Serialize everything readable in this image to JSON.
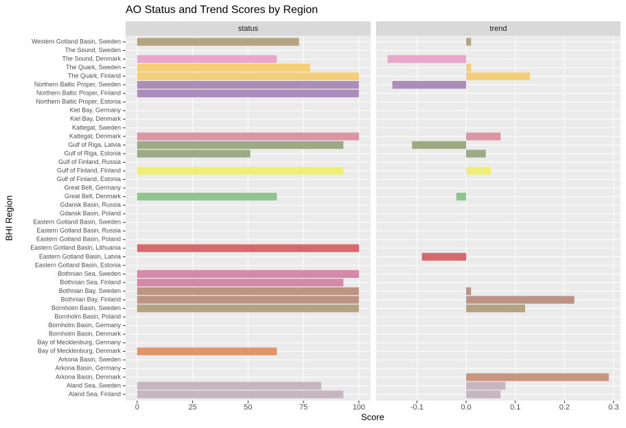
{
  "chart_data": {
    "type": "bar",
    "orientation": "horizontal",
    "title": "AO Status and Trend Scores by Region",
    "x_label": "Score",
    "y_label": "BHI Region",
    "categories": [
      "Western Gotland Basin, Sweden",
      "The Sound, Sweden",
      "The Sound, Denmark",
      "The Quark, Sweden",
      "The Quark, Finland",
      "Northern Baltic Proper, Sweden",
      "Northern Baltic Proper, Finland",
      "Northern Baltic Proper, Estonia",
      "Kiel Bay, Germany",
      "Kiel Bay, Denmark",
      "Kattegat, Sweden",
      "Kattegat, Denmark",
      "Gulf of Riga, Latvia",
      "Gulf of Riga, Estonia",
      "Gulf of Finland, Russia",
      "Gulf of Finland, Finland",
      "Gulf of Finland, Estonia",
      "Great Belt, Germany",
      "Great Belt, Denmark",
      "Gdansk Basin, Russia",
      "Gdansk Basin, Poland",
      "Eastern Gotland Basin, Sweden",
      "Eastern Gotland Basin, Russia",
      "Eastern Gotland Basin, Poland",
      "Eastern Gotland Basin, Lithuania",
      "Eastern Gotland Basin, Latvia",
      "Eastern Gotland Basin, Estonia",
      "Bothnian Sea, Sweden",
      "Bothnian Sea, Finland",
      "Bothnian Bay, Sweden",
      "Bothnian Bay, Finland",
      "Bornholm Basin, Sweden",
      "Bornholm Basin, Poland",
      "Bornholm Basin, Germany",
      "Bornholm Basin, Denmark",
      "Bay of Mecklenburg, Germany",
      "Bay of Mecklenburg, Denmark",
      "Arkona Basin, Sweden",
      "Arkona Basin, Germany",
      "Arkona Basin, Denmark",
      "Aland Sea, Sweden",
      "Aland Sea, Finland"
    ],
    "colors": [
      "#b5a481",
      null,
      "#e7a8cb",
      "#f5cf78",
      "#f5cf78",
      "#ab8db9",
      "#ab8db9",
      null,
      null,
      null,
      null,
      "#dc96a3",
      "#9cab86",
      "#9cab86",
      null,
      "#eeee78",
      null,
      null,
      "#8fc68f",
      null,
      null,
      null,
      null,
      null,
      "#d7686f",
      "#d7686f",
      null,
      "#d588a7",
      "#d588a7",
      "#bc9486",
      "#bc9486",
      "#b3a381",
      null,
      null,
      null,
      null,
      "#e0956d",
      null,
      null,
      "#c8957f",
      "#c6b6bf",
      "#c6b6bf"
    ],
    "panels": [
      {
        "strip": "status",
        "xlim": [
          -5.2,
          105.3
        ],
        "xticks": [
          0,
          25,
          50,
          75,
          100
        ],
        "values": [
          73,
          null,
          63,
          78,
          100,
          100,
          100,
          null,
          null,
          null,
          null,
          100,
          93,
          51,
          null,
          93,
          null,
          null,
          63,
          null,
          null,
          null,
          null,
          null,
          100,
          null,
          null,
          100,
          93,
          100,
          100,
          100,
          null,
          null,
          null,
          null,
          63,
          null,
          null,
          null,
          83,
          93
        ]
      },
      {
        "strip": "trend",
        "xlim": [
          -0.183,
          0.314
        ],
        "xticks": [
          -0.1,
          {
            "value": 0,
            "label": "0.0"
          },
          0.1,
          0.2,
          0.3
        ],
        "values": [
          0.01,
          null,
          -0.16,
          0.01,
          0.13,
          -0.15,
          null,
          null,
          null,
          null,
          null,
          0.07,
          -0.11,
          0.04,
          null,
          0.05,
          null,
          null,
          -0.02,
          null,
          null,
          null,
          null,
          null,
          null,
          -0.09,
          null,
          null,
          null,
          0.01,
          0.22,
          0.12,
          null,
          null,
          null,
          null,
          null,
          null,
          null,
          0.29,
          0.08,
          0.07
        ]
      }
    ],
    "grid": true
  }
}
